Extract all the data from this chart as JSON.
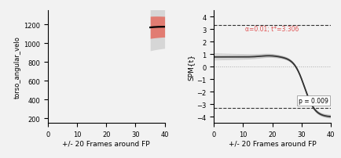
{
  "left_ylabel": "torso_angular_velo",
  "xlabel": "+/- 20 Frames around FP",
  "right_ylabel": "SPM{t}",
  "xlim": [
    0,
    40
  ],
  "left_ylim": [
    150,
    1350
  ],
  "right_ylim": [
    -4.5,
    4.5
  ],
  "left_yticks": [
    200,
    400,
    600,
    800,
    1000,
    1200
  ],
  "right_yticks": [
    -4,
    -3,
    -2,
    -1,
    0,
    1,
    2,
    3,
    4
  ],
  "xticks": [
    0,
    10,
    20,
    30,
    40
  ],
  "spm_threshold": 3.306,
  "spm_annotation": "α=0.01; t*=3.306",
  "spm_p_annotation": "p = 0.009",
  "annotation_color": "#e05050",
  "ci_color_inner": "#e74c3c",
  "ci_color_outer": "#c0c0c0",
  "spm_line_color": "#2c2c2c",
  "threshold_line_color": "#333333",
  "zero_line_color": "#aaaaaa",
  "bg_color": "#f2f2f2"
}
